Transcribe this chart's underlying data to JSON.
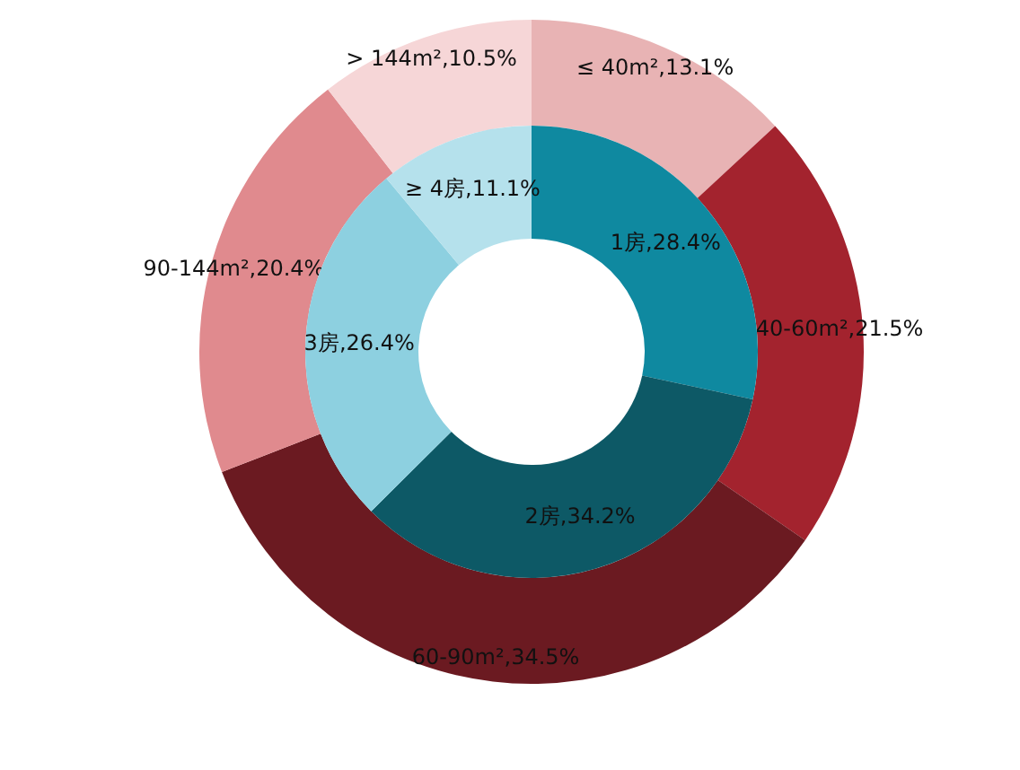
{
  "chart_data": [
    {
      "type": "donut",
      "categories": [
        "≤ 40m²",
        "40-60m²",
        "60-90m²",
        "90-144m²",
        "> 144m²"
      ],
      "values": [
        13.1,
        21.5,
        34.5,
        20.4,
        10.5
      ],
      "colors": [
        "#e8b3b4",
        "#a3232e",
        "#6b1a21",
        "#e08a8e",
        "#f6d6d7"
      ],
      "value_labels": [
        ",13.1%",
        ",21.5%",
        ",34.5%",
        ",20.4%",
        ",10.5%"
      ]
    },
    {
      "type": "donut",
      "categories": [
        "1房",
        "2房",
        "3房",
        "≥ 4房"
      ],
      "values": [
        28.4,
        34.2,
        26.4,
        11.1
      ],
      "colors": [
        "#0f89a0",
        "#0d5966",
        "#8dd0e0",
        "#b5e1ec"
      ],
      "value_labels": [
        ",28.4%",
        ",34.2%",
        ",26.4%",
        ",11.1%"
      ]
    }
  ]
}
